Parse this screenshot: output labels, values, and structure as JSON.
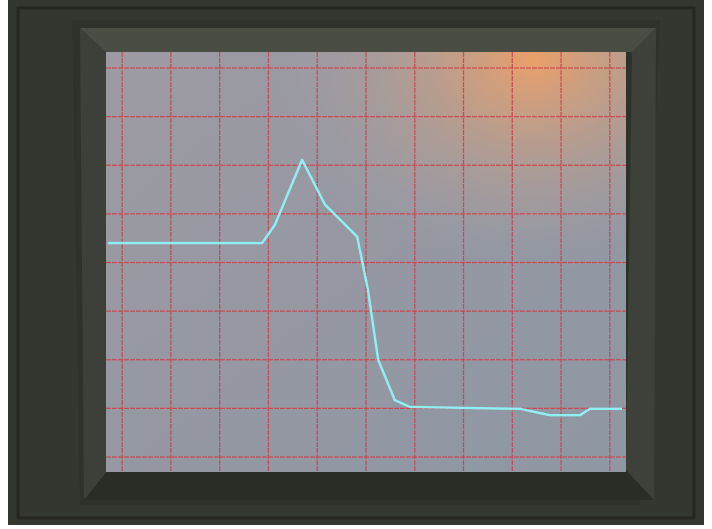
{
  "chart_data": {
    "type": "line",
    "x": [
      -0.29,
      2.87,
      3.13,
      3.69,
      4.16,
      4.82,
      5.04,
      5.25,
      5.59,
      5.9,
      8.16,
      8.77,
      9.39,
      9.59,
      10.25
    ],
    "series": [
      {
        "color": "#8ff0f4",
        "values": [
          4.4,
          4.4,
          4.77,
          6.11,
          5.19,
          4.53,
          3.44,
          2.0,
          1.17,
          1.03,
          0.99,
          0.86,
          0.86,
          0.99,
          0.99
        ]
      }
    ],
    "xlim": [
      -0.29,
      10.25
    ],
    "ylim": [
      0,
      8
    ],
    "xticks": [
      0,
      1,
      2,
      3,
      4,
      5,
      6,
      7,
      8,
      9,
      10
    ],
    "yticks": [
      0,
      1,
      2,
      3,
      4,
      5,
      6,
      7,
      8
    ],
    "grid": true,
    "grid_color": "#c9424c"
  }
}
